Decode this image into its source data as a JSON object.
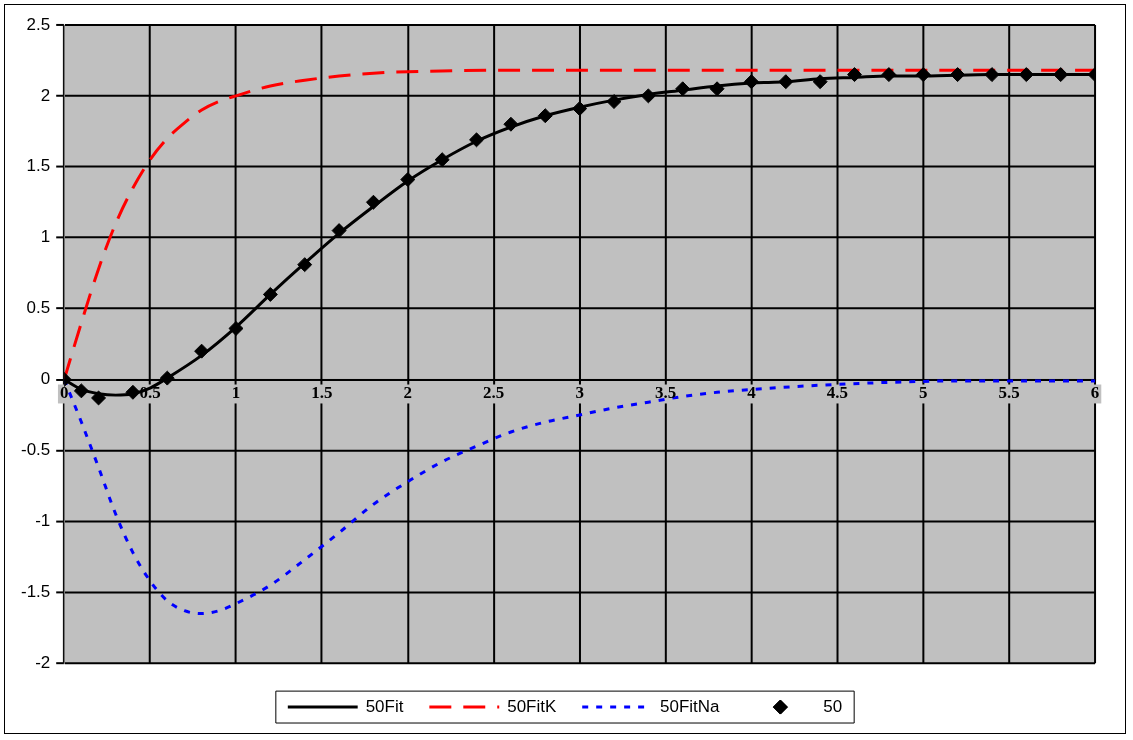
{
  "chart_data": {
    "type": "line",
    "xlim": [
      0,
      6
    ],
    "xticks": [
      0,
      0.5,
      1,
      1.5,
      2,
      2.5,
      3,
      3.5,
      4,
      4.5,
      5,
      5.5,
      6
    ],
    "ylim": [
      -2,
      2.5
    ],
    "yticks": [
      -2,
      -1.5,
      -1,
      -0.5,
      0,
      0.5,
      1,
      1.5,
      2,
      2.5
    ],
    "grid": true,
    "legend": "bottom",
    "series": [
      {
        "name": "50Fit",
        "line_style": "solid",
        "color": "#000000",
        "x": [
          0,
          0.1,
          0.2,
          0.3,
          0.4,
          0.5,
          0.6,
          0.8,
          1,
          1.2,
          1.4,
          1.6,
          1.8,
          2,
          2.2,
          2.4,
          2.6,
          2.8,
          3,
          3.2,
          3.4,
          3.6,
          3.8,
          4,
          4.2,
          4.4,
          4.6,
          4.8,
          5,
          5.4,
          5.8,
          6
        ],
        "values": [
          0,
          -0.07,
          -0.1,
          -0.11,
          -0.1,
          -0.06,
          0.01,
          0.17,
          0.37,
          0.6,
          0.82,
          1.03,
          1.22,
          1.4,
          1.55,
          1.68,
          1.78,
          1.86,
          1.92,
          1.97,
          2.01,
          2.04,
          2.07,
          2.09,
          2.1,
          2.12,
          2.13,
          2.14,
          2.14,
          2.15,
          2.15,
          2.15
        ]
      },
      {
        "name": "50FitK",
        "line_style": "dashed",
        "color": "#ff0000",
        "x": [
          0,
          0.1,
          0.2,
          0.3,
          0.4,
          0.5,
          0.6,
          0.7,
          0.8,
          0.9,
          1,
          1.2,
          1.4,
          1.6,
          1.8,
          2,
          2.5,
          3,
          4,
          5,
          6
        ],
        "values": [
          0,
          0.4,
          0.78,
          1.1,
          1.35,
          1.55,
          1.7,
          1.81,
          1.9,
          1.96,
          2,
          2.07,
          2.11,
          2.14,
          2.16,
          2.17,
          2.18,
          2.18,
          2.18,
          2.18,
          2.18
        ]
      },
      {
        "name": "50FitNa",
        "line_style": "dotted",
        "color": "#0000ff",
        "x": [
          0,
          0.1,
          0.2,
          0.3,
          0.4,
          0.5,
          0.6,
          0.7,
          0.8,
          0.9,
          1,
          1.2,
          1.4,
          1.6,
          1.8,
          2,
          2.2,
          2.4,
          2.6,
          2.8,
          3,
          3.2,
          3.4,
          3.6,
          3.8,
          4,
          4.4,
          4.8,
          5.2,
          6
        ],
        "values": [
          0,
          -0.3,
          -0.62,
          -0.95,
          -1.22,
          -1.42,
          -1.56,
          -1.63,
          -1.65,
          -1.63,
          -1.58,
          -1.45,
          -1.27,
          -1.08,
          -0.88,
          -0.72,
          -0.58,
          -0.47,
          -0.37,
          -0.3,
          -0.25,
          -0.2,
          -0.16,
          -0.12,
          -0.09,
          -0.07,
          -0.04,
          -0.02,
          -0.01,
          -0.01
        ]
      },
      {
        "name": "50",
        "type": "scatter",
        "marker": "diamond",
        "color": "#000000",
        "x": [
          0,
          0.1,
          0.2,
          0.4,
          0.6,
          0.8,
          1,
          1.2,
          1.4,
          1.6,
          1.8,
          2,
          2.2,
          2.4,
          2.6,
          2.8,
          3,
          3.2,
          3.4,
          3.6,
          3.8,
          4,
          4.2,
          4.4,
          4.6,
          4.8,
          5,
          5.2,
          5.4,
          5.6,
          5.8,
          6
        ],
        "values": [
          0,
          -0.08,
          -0.13,
          -0.09,
          0.01,
          0.2,
          0.36,
          0.6,
          0.81,
          1.05,
          1.25,
          1.41,
          1.55,
          1.69,
          1.8,
          1.86,
          1.91,
          1.96,
          2,
          2.05,
          2.05,
          2.1,
          2.1,
          2.1,
          2.15,
          2.15,
          2.15,
          2.15,
          2.15,
          2.15,
          2.15,
          2.15
        ]
      }
    ]
  }
}
